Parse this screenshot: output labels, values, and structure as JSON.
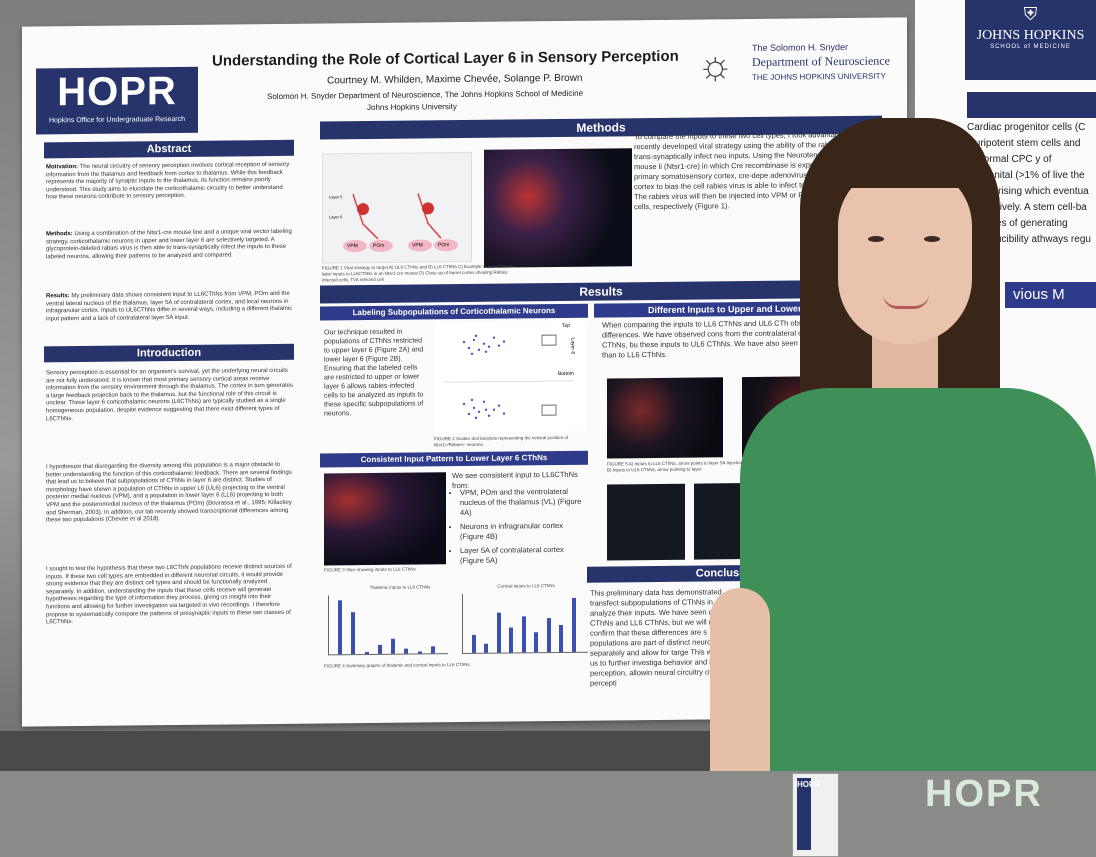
{
  "poster": {
    "logo": {
      "text": "HOPR",
      "subtitle": "Hopkins Office for Undergraduate Research"
    },
    "title": "Understanding the Role of Cortical Layer 6 in Sensory Perception",
    "authors": "Courtney M. Whilden, Maxime Chevée, Solange P. Brown",
    "affiliation": "Solomon H. Snyder Department of Neuroscience, The Johns Hopkins School of Medicine",
    "affiliation2": "Johns Hopkins University",
    "dept_logo": {
      "line1": "The Solomon H. Snyder",
      "line2": "Department of Neuroscience",
      "line3": "THE JOHNS HOPKINS UNIVERSITY"
    },
    "sections": {
      "abstract": "Abstract",
      "introduction": "Introduction",
      "methods": "Methods",
      "results": "Results",
      "labeling": "Labeling Subpopulations of Corticothalamic Neurons",
      "different_inputs": "Different Inputs to Upper and Lower Layer",
      "consistent_input": "Consistent Input Pattern to Lower Layer 6 CThNs",
      "conclusion": "Conclusion and"
    },
    "abstract": {
      "motivation_label": "Motivation:",
      "motivation": "The neural circuitry of sensory perception involves cortical reception of sensory information from the thalamus and feedback from cortex to thalamus. While this feedback represents the majority of synaptic inputs to the thalamus, its function remains poorly understood. This study aims to elucidate the corticothalamic circuitry to better understand how these neurons contribute to sensory perception.",
      "methods_label": "Methods:",
      "methods": "Using a combination of the Ntsr1-cre mouse line and a unique viral vector labeling strategy, corticothalamic neurons in upper and lower layer 6 are selectively targeted. A glycoprotein-deleted rabies virus is then able to trans-synaptically infect the inputs to these labeled neurons, allowing their patterns to be analyzed and compared.",
      "results_label": "Results:",
      "results": "My preliminary data shows consistent input to LL6CThNs from VPM, POm and the ventral lateral nucleus of the thalamus, layer 5A of contralateral cortex, and local neurons in infragranular cortex. Inputs to UL6CThNs differ in several ways, including a different thalamic input pattern and a lack of contralateral layer 5A input."
    },
    "introduction": {
      "p1": "Sensory perception is essential for an organism's survival, yet the underlying neural circuits are not fully understood. It is known that most primary sensory cortical areas receive information from the sensory environment through the thalamus. The cortex in turn generates a large feedback projection back to the thalamus, but the functional role of this circuit is unclear. These layer 6 corticothalamic neurons (L6CThNs) are typically studied as a single homogeneous population, despite evidence suggesting that there exist different types of L6CThNs.",
      "p2": "I hypothesize that disregarding the diversity among this population is a major obstacle to better understanding the function of this corticothalamic feedback. There are several findings that lead us to believe that subpopulations of CThNs in layer 6 are distinct. Studies of morphology have shown a population of CThNs in upper L6 (UL6) projecting to the ventral posterior medial nucleus (VPM), and a population in lower layer 6 (LL6) projecting to both VPM and the posteromedial nucleus of the thalamus (POm) (Bourassa et al., 1995; Killackey and Sherman, 2003). In addition, our lab recently showed transcriptional differences among these two populations (Chevée et al 2018).",
      "p3": "I sought to test the hypothesis that these two L6CThN populations receive distinct sources of inputs. If these two cell types are embedded in different neuronal circuits, it would provide strong evidence that they are distinct cell types and should be functionally analyzed separately. In addition, understanding the inputs that these cells receive will generate hypotheses regarding the type of information they process, giving us insight into their functions and allowing for further investigation via targeted in vivo recordings. I therefore propose to systematically compare the patterns of presynaptic inputs to these two classes of L6CThNs."
    },
    "methods": {
      "text": "To compare the inputs to these two cell types, I took advantage of a recently developed viral strategy using the ability of the rabies virus to trans-synaptically infect neu inputs. Using the Neurotensin receptor 1-Cre mouse li (Ntsr1-cre) in which Cre recombinase is expressed in L6CThNs in primary somatosensory cortex, cre-depe adenovirus is injected into the cortex to bias the cell rabies virus is able to infect to L6CThNs in upper or The rabies virus will then be injected into VPM or P label inputs to those cells, respectively (Figure 1).",
      "fig_labels": [
        "Layer 5",
        "Layer 6",
        "VPM",
        "POm",
        "VPM",
        "POm"
      ],
      "caption": "FIGURE 1 Viral strategy to target A) UL6 CThNs and B) LL6 CThNs C) Example of experiment to label inputs to LL6CThNs in an Ntsr1-cre mouse D) Close up of barrel cortex showing Rabies infected cells, TVA infected cell"
    },
    "labeling": {
      "text": "Our technique resulted in populations of CThNs restricted to upper layer 6 (Figure 2A) and lower layer 6 (Figure 2B). Ensuring that the labeled cells are restricted to upper or lower layer 6 allows rabies-infected cells to be analyzed as inputs to these specific subpopulations of neurons.",
      "axis_top": "Top",
      "axis_bottom": "Bottom",
      "axis_label": "Layer 6",
      "caption": "FIGURE 2 Scatter and boxplots representing the vertical position of Ntsr1+/Rabies+ neurons."
    },
    "consistent": {
      "intro": "We see consistent input to LL6CThNs from:",
      "items": [
        "VPM, POm and the ventrolateral nucleus of the thalamus (VL) (Figure 4A)",
        "Neurons in infragranular cortex (Figure 4B)",
        "Layer 5A of contralateral cortex (Figure 5A)"
      ],
      "fig3_caption": "FIGURE 3 Slice showing inputs to LL6 CThNs",
      "chart_a_title": "Thalamic inputs to LL6 CThNs",
      "chart_b_title": "Cortical inputs to LL6 CThNs",
      "fig4_caption": "FIGURE 4 Summary graphs of thalamic and cortical inputs to LL6 CThNs"
    },
    "different": {
      "text": "When comparing the inputs to LL6 CThNs and UL6 CTh observed noticeable differences. We have observed cons from the contralateral cortical layer 5A to LL6 CThNs, bu these inputs to UL6 CThNs. We have also seen different to UL6 CThNs than to LL6 CThNs.",
      "caption": "FIGURE 5 A) Inputs to LL6 CThNs, arrow points to layer 5A Injection B) Inputs to UL6 CThNs, arrow pointing to layer"
    },
    "conclusion": {
      "text": "This preliminary data has demonstrated transfect subpopulations of CThNs in a analyze their inputs. We have seen dif CThNs and LL6 CThNs, but we will ne to confirm that these differences are s populations are part of distinct neuro inputs separately and allow for targe This will allow us to further investiga behavior and in perception, allowin neural circuitry of sensory percepti"
    }
  },
  "right_poster": {
    "school": "JOHNS HOPKINS",
    "school_sub": "SCHOOL of MEDICINE",
    "body": "Cardiac progenitor cells (C pluripotent stem cells and abnormal CPC y of congenital (>1% of live the heart arising which eventua respectively. A stem cell-ba analyses of generating reproducibility athways regu",
    "section": "vious M"
  },
  "shirt_logo": "HOPR",
  "badge_letters": "HOPR",
  "chart_data": [
    {
      "type": "bar",
      "title": "Thalamic inputs to LL6 CThNs",
      "categories": [
        "",
        "",
        "",
        "",
        "",
        "",
        "",
        ""
      ],
      "values": [
        9.5,
        7.5,
        0.4,
        1.6,
        2.7,
        0.8,
        0.4,
        1.3
      ],
      "color": "#3d4fb0"
    },
    {
      "type": "bar",
      "title": "Cortical inputs to LL6 CThNs",
      "categories": [
        "",
        "",
        "",
        "",
        "",
        "",
        "",
        "",
        ""
      ],
      "values": [
        1.6,
        0.8,
        3.6,
        2.2,
        3.2,
        1.8,
        3.0,
        2.4,
        4.8
      ],
      "color": "#3d4fb0"
    }
  ]
}
